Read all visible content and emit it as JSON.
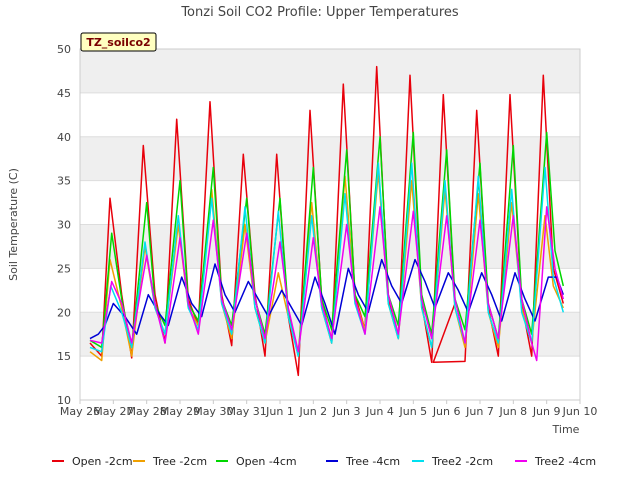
{
  "chart_data": {
    "type": "line",
    "title": "Tonzi Soil CO2 Profile: Upper Temperatures",
    "xlabel": "Time",
    "ylabel": "Soil Temperature (C)",
    "ylim": [
      10,
      50
    ],
    "yticks": [
      10,
      15,
      20,
      25,
      30,
      35,
      40,
      45,
      50
    ],
    "xlim": [
      0,
      15
    ],
    "xticks": [
      {
        "x": 0,
        "label": "May 26"
      },
      {
        "x": 1,
        "label": "May 27"
      },
      {
        "x": 2,
        "label": "May 28"
      },
      {
        "x": 3,
        "label": "May 29"
      },
      {
        "x": 4,
        "label": "May 30"
      },
      {
        "x": 5,
        "label": "May 31"
      },
      {
        "x": 6,
        "label": "Jun 1"
      },
      {
        "x": 7,
        "label": "Jun 2"
      },
      {
        "x": 8,
        "label": "Jun 3"
      },
      {
        "x": 9,
        "label": "Jun 4"
      },
      {
        "x": 10,
        "label": "Jun 5"
      },
      {
        "x": 11,
        "label": "Jun 6"
      },
      {
        "x": 12,
        "label": "Jun 7"
      },
      {
        "x": 13,
        "label": "Jun 8"
      },
      {
        "x": 14,
        "label": "Jun 9"
      },
      {
        "x": 15,
        "label": "Jun 10"
      }
    ],
    "grid": true,
    "banded_background": true,
    "legend_position": "bottom",
    "annotation": "TZ_soilco2",
    "series": [
      {
        "name": "Open -2cm",
        "color": "#e8000b",
        "x": [
          0.3,
          0.65,
          0.9,
          1.25,
          1.55,
          1.9,
          2.25,
          2.55,
          2.9,
          3.25,
          3.55,
          3.9,
          4.25,
          4.55,
          4.9,
          5.25,
          5.55,
          5.9,
          6.25,
          6.55,
          6.9,
          7.25,
          7.55,
          7.9,
          8.25,
          8.55,
          8.9,
          9.25,
          9.55,
          9.9,
          10.25,
          10.55,
          10.9,
          11.25,
          10.6,
          11.55,
          11.9,
          12.25,
          12.55,
          12.9,
          13.25,
          13.55,
          13.9,
          14.2,
          14.5
        ],
        "y": [
          16.5,
          15.0,
          33.0,
          22.0,
          14.8,
          39.0,
          22.0,
          16.5,
          42.0,
          21.5,
          18.5,
          44.0,
          22.0,
          16.2,
          38.0,
          22.0,
          15.0,
          38.0,
          19.5,
          12.8,
          43.0,
          21.5,
          16.5,
          46.0,
          22.0,
          18.0,
          48.0,
          21.5,
          17.0,
          47.0,
          21.0,
          14.3,
          44.8,
          21.0,
          14.3,
          14.4,
          43.0,
          20.5,
          15.0,
          44.8,
          21.0,
          15.0,
          47.0,
          25.0,
          21.0
        ]
      },
      {
        "name": "Tree -2cm",
        "color": "#f0a000",
        "x": [
          0.3,
          0.65,
          0.9,
          1.25,
          1.55,
          1.95,
          2.25,
          2.55,
          2.95,
          3.25,
          3.55,
          3.95,
          4.25,
          4.55,
          4.95,
          5.25,
          5.55,
          5.95,
          6.25,
          6.55,
          6.95,
          7.25,
          7.55,
          7.95,
          8.25,
          8.55,
          8.95,
          9.25,
          9.55,
          9.95,
          10.25,
          10.55,
          10.95,
          11.25,
          11.55,
          11.95,
          12.25,
          12.55,
          12.95,
          13.25,
          13.55,
          13.95,
          14.2,
          14.5
        ],
        "y": [
          15.5,
          14.5,
          26.0,
          20.5,
          15.0,
          27.5,
          20.5,
          17.5,
          30.0,
          20.5,
          18.5,
          34.0,
          21.0,
          17.0,
          30.0,
          20.5,
          16.5,
          24.5,
          19.5,
          15.5,
          32.5,
          20.5,
          16.5,
          35.5,
          21.5,
          18.0,
          36.0,
          21.0,
          17.0,
          35.0,
          20.5,
          16.0,
          34.0,
          20.5,
          16.0,
          33.5,
          20.0,
          16.0,
          32.5,
          20.5,
          16.5,
          31.0,
          23.0,
          20.5
        ]
      },
      {
        "name": "Open -4cm",
        "color": "#00d600",
        "x": [
          0.3,
          0.65,
          0.95,
          1.25,
          1.55,
          2.0,
          2.25,
          2.55,
          3.0,
          3.25,
          3.55,
          4.0,
          4.25,
          4.55,
          5.0,
          5.25,
          5.55,
          6.0,
          6.25,
          6.55,
          7.0,
          7.25,
          7.55,
          8.0,
          8.25,
          8.55,
          9.0,
          9.25,
          9.55,
          10.0,
          10.25,
          10.55,
          11.0,
          11.25,
          11.55,
          12.0,
          12.25,
          12.55,
          13.0,
          13.25,
          13.55,
          14.0,
          14.25,
          14.5
        ],
        "y": [
          16.8,
          16.0,
          29.0,
          21.5,
          16.0,
          32.5,
          21.0,
          18.5,
          35.0,
          21.0,
          19.0,
          36.5,
          21.5,
          18.5,
          33.0,
          21.5,
          17.5,
          33.0,
          20.0,
          15.0,
          36.5,
          21.5,
          18.0,
          38.5,
          22.0,
          19.5,
          40.0,
          22.0,
          18.5,
          40.5,
          22.0,
          17.5,
          38.5,
          21.5,
          18.0,
          37.0,
          21.0,
          17.0,
          39.0,
          21.5,
          17.5,
          40.5,
          27.0,
          23.0
        ]
      },
      {
        "name": "Tree -4cm",
        "color": "#0000d6",
        "x": [
          0.3,
          0.55,
          0.75,
          1.0,
          1.35,
          1.7,
          2.05,
          2.35,
          2.65,
          3.05,
          3.35,
          3.65,
          4.05,
          4.35,
          4.65,
          5.05,
          5.35,
          5.65,
          6.05,
          6.35,
          6.65,
          7.05,
          7.35,
          7.65,
          8.05,
          8.35,
          8.65,
          9.05,
          9.35,
          9.65,
          10.05,
          10.35,
          10.65,
          11.05,
          11.35,
          11.65,
          12.05,
          12.35,
          12.65,
          13.05,
          13.35,
          13.65,
          14.05,
          14.3,
          14.5
        ],
        "y": [
          17.0,
          17.5,
          18.5,
          21.0,
          19.5,
          17.5,
          22.0,
          20.0,
          18.5,
          24.0,
          21.0,
          19.5,
          25.5,
          22.0,
          20.0,
          23.5,
          21.5,
          19.5,
          22.5,
          20.5,
          18.5,
          24.0,
          21.0,
          17.5,
          25.0,
          22.0,
          20.0,
          26.0,
          23.0,
          21.0,
          26.0,
          23.5,
          20.5,
          24.5,
          22.5,
          20.0,
          24.5,
          22.0,
          19.0,
          24.5,
          21.5,
          19.0,
          24.0,
          24.0,
          22.0
        ]
      },
      {
        "name": "Tree2 -2cm",
        "color": "#00e0f0",
        "x": [
          0.3,
          0.65,
          0.92,
          1.25,
          1.55,
          1.95,
          2.25,
          2.55,
          2.95,
          3.25,
          3.55,
          3.95,
          4.25,
          4.55,
          4.95,
          5.25,
          5.55,
          5.95,
          6.25,
          6.55,
          6.95,
          7.25,
          7.55,
          7.95,
          8.25,
          8.55,
          8.95,
          9.25,
          9.55,
          9.95,
          10.25,
          10.55,
          10.95,
          11.25,
          11.55,
          11.95,
          12.25,
          12.55,
          12.95,
          13.25,
          13.55,
          13.95,
          14.2,
          14.5
        ],
        "y": [
          16.0,
          15.5,
          23.0,
          20.0,
          16.0,
          28.0,
          20.5,
          17.5,
          31.0,
          20.5,
          18.0,
          33.0,
          21.0,
          17.5,
          32.0,
          20.5,
          16.5,
          31.5,
          19.5,
          15.0,
          31.0,
          20.5,
          16.5,
          33.5,
          21.0,
          17.5,
          37.0,
          21.0,
          17.0,
          37.0,
          20.5,
          16.0,
          35.0,
          20.5,
          16.5,
          35.5,
          20.0,
          16.5,
          34.0,
          20.0,
          16.5,
          36.5,
          24.0,
          20.0
        ]
      },
      {
        "name": "Tree2 -4cm",
        "color": "#f000f0",
        "x": [
          0.3,
          0.65,
          0.95,
          1.25,
          1.55,
          2.0,
          2.25,
          2.55,
          3.0,
          3.25,
          3.55,
          4.0,
          4.25,
          4.55,
          5.0,
          5.25,
          5.55,
          6.0,
          6.25,
          6.55,
          7.0,
          7.25,
          7.55,
          8.0,
          8.25,
          8.55,
          9.0,
          9.25,
          9.55,
          10.0,
          10.25,
          10.55,
          11.0,
          11.25,
          11.55,
          12.0,
          12.25,
          12.55,
          13.0,
          13.25,
          13.55,
          13.7,
          14.0,
          14.25,
          14.5
        ],
        "y": [
          16.8,
          16.5,
          23.5,
          21.0,
          16.5,
          26.5,
          21.0,
          16.5,
          28.5,
          21.0,
          17.5,
          30.5,
          21.5,
          18.0,
          29.0,
          21.5,
          17.0,
          28.0,
          20.5,
          15.5,
          28.5,
          21.0,
          17.0,
          30.0,
          21.5,
          17.5,
          32.0,
          22.0,
          17.5,
          31.5,
          21.5,
          17.0,
          31.0,
          21.5,
          16.5,
          30.5,
          21.0,
          17.0,
          31.0,
          21.5,
          16.5,
          14.5,
          32.0,
          25.0,
          21.5
        ]
      }
    ]
  }
}
